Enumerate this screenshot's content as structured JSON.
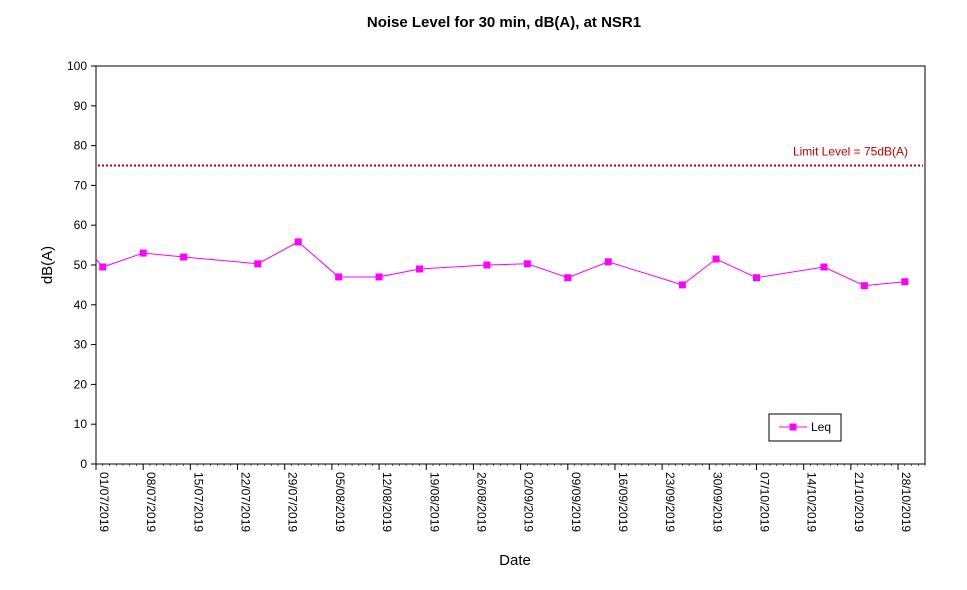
{
  "chart_data": {
    "type": "line",
    "title": "Noise Level for 30 min, dB(A), at NSR1",
    "xlabel": "Date",
    "ylabel": "dB(A)",
    "ylim": [
      0,
      100
    ],
    "yticks": [
      0,
      10,
      20,
      30,
      40,
      50,
      60,
      70,
      80,
      90,
      100
    ],
    "xlim": [
      "2019-07-01",
      "2019-11-01"
    ],
    "xticks": [
      "01/07/2019",
      "08/07/2019",
      "15/07/2019",
      "22/07/2019",
      "29/07/2019",
      "05/08/2019",
      "12/08/2019",
      "19/08/2019",
      "26/08/2019",
      "02/09/2019",
      "09/09/2019",
      "16/09/2019",
      "23/09/2019",
      "30/09/2019",
      "07/10/2019",
      "14/10/2019",
      "21/10/2019",
      "28/10/2019"
    ],
    "grid": false,
    "legend_position": "bottom-right",
    "series": [
      {
        "name": "Leq",
        "color": "#ff00ff",
        "marker": "square",
        "x": [
          "2019-07-02",
          "2019-07-08",
          "2019-07-14",
          "2019-07-25",
          "2019-07-31",
          "2019-08-06",
          "2019-08-12",
          "2019-08-18",
          "2019-08-28",
          "2019-09-03",
          "2019-09-09",
          "2019-09-15",
          "2019-09-26",
          "2019-10-01",
          "2019-10-07",
          "2019-10-17",
          "2019-10-23",
          "2019-10-29"
        ],
        "y": [
          49.5,
          53.0,
          52.0,
          50.3,
          55.8,
          47.0,
          47.0,
          49.0,
          50.0,
          50.3,
          46.8,
          50.8,
          45.0,
          51.5,
          46.8,
          49.5,
          44.8,
          45.8
        ]
      }
    ],
    "reference_lines": [
      {
        "label": "Limit Level  = 75dB(A)",
        "y": 75,
        "color": "#c00000",
        "style": "dotted"
      }
    ]
  }
}
